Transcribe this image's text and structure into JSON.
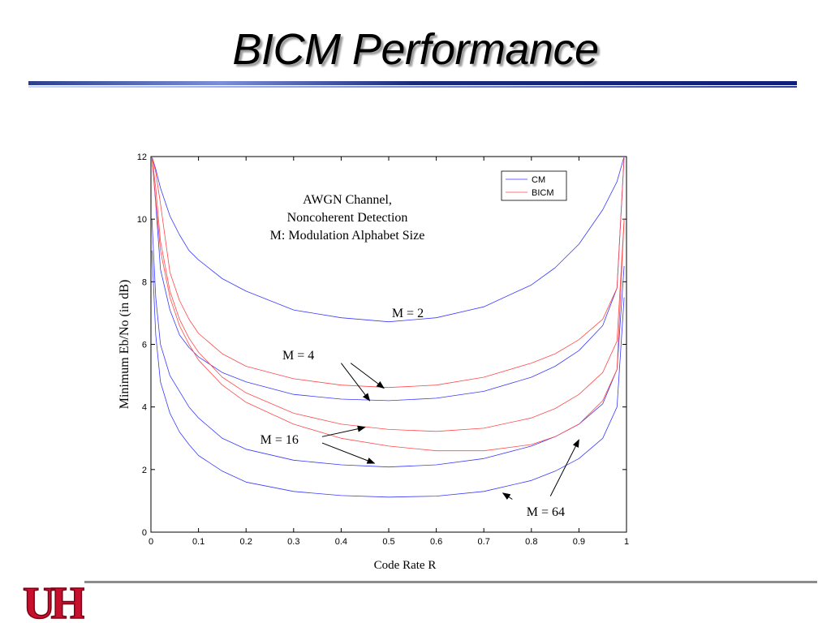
{
  "slide": {
    "title": "BICM Performance"
  },
  "colors": {
    "cm": "#3a3aff",
    "bicm": "#ff4a4a",
    "title_rule_dark": "#1a2b7a",
    "title_rule_light": "#c8d4ff",
    "footer_rule": "#8c8c8c",
    "logo_red": "#c8102e"
  },
  "logo": {
    "icon": "university-of-houston-uh-logo",
    "text": "UH"
  },
  "chart_data": {
    "type": "line",
    "xlabel": "Code Rate R",
    "ylabel": "Minimum Eb/No (in dB)",
    "xlim": [
      0,
      1
    ],
    "ylim": [
      0,
      12
    ],
    "xticks": [
      "0",
      "0.1",
      "0.2",
      "0.3",
      "0.4",
      "0.5",
      "0.6",
      "0.7",
      "0.8",
      "0.9",
      "1"
    ],
    "yticks": [
      "0",
      "2",
      "4",
      "6",
      "8",
      "10",
      "12"
    ],
    "grid": false,
    "legend": {
      "position": "top-right",
      "entries": [
        "CM",
        "BICM"
      ]
    },
    "annotation_lines": [
      "AWGN Channel,",
      "Noncoherent Detection",
      "M: Modulation Alphabet Size"
    ],
    "curve_labels": [
      {
        "text": "M = 2",
        "x": 0.54,
        "y": 7.0
      },
      {
        "text": "M = 4",
        "x": 0.31,
        "y": 5.65
      },
      {
        "text": "M = 16",
        "x": 0.27,
        "y": 2.95
      },
      {
        "text": "M = 64",
        "x": 0.83,
        "y": 0.65
      }
    ],
    "arrows": [
      {
        "from": [
          0.42,
          5.4
        ],
        "to": [
          0.49,
          4.6
        ]
      },
      {
        "from": [
          0.4,
          5.4
        ],
        "to": [
          0.46,
          4.2
        ]
      },
      {
        "from": [
          0.36,
          3.05
        ],
        "to": [
          0.45,
          3.35
        ]
      },
      {
        "from": [
          0.36,
          2.85
        ],
        "to": [
          0.47,
          2.2
        ]
      },
      {
        "from": [
          0.84,
          1.15
        ],
        "to": [
          0.9,
          2.95
        ]
      },
      {
        "from": [
          0.76,
          1.05
        ],
        "to": [
          0.74,
          1.25
        ]
      }
    ],
    "series": [
      {
        "group": "CM",
        "modulation": "M = 2",
        "x": [
          0.002,
          0.01,
          0.02,
          0.04,
          0.06,
          0.08,
          0.1,
          0.15,
          0.2,
          0.3,
          0.4,
          0.5,
          0.6,
          0.7,
          0.8,
          0.85,
          0.9,
          0.95,
          0.98,
          0.995
        ],
        "y": [
          12,
          11.6,
          11,
          10.1,
          9.5,
          9.0,
          8.7,
          8.1,
          7.7,
          7.1,
          6.85,
          6.72,
          6.85,
          7.2,
          7.9,
          8.45,
          9.2,
          10.3,
          11.2,
          12
        ]
      },
      {
        "group": "CM",
        "modulation": "M = 4",
        "x": [
          0.002,
          0.01,
          0.02,
          0.04,
          0.06,
          0.08,
          0.1,
          0.15,
          0.2,
          0.3,
          0.4,
          0.5,
          0.6,
          0.7,
          0.8,
          0.85,
          0.9,
          0.95,
          0.98,
          0.995
        ],
        "y": [
          12,
          10.5,
          8.4,
          7.1,
          6.3,
          5.9,
          5.6,
          5.1,
          4.8,
          4.4,
          4.25,
          4.2,
          4.28,
          4.5,
          4.95,
          5.3,
          5.8,
          6.6,
          7.8,
          12
        ]
      },
      {
        "group": "BICM",
        "modulation": "M = 4",
        "x": [
          0.002,
          0.01,
          0.02,
          0.04,
          0.06,
          0.08,
          0.1,
          0.15,
          0.2,
          0.3,
          0.4,
          0.5,
          0.6,
          0.7,
          0.8,
          0.85,
          0.9,
          0.95,
          0.98,
          0.995
        ],
        "y": [
          12,
          11.5,
          10.5,
          8.3,
          7.4,
          6.8,
          6.35,
          5.7,
          5.3,
          4.9,
          4.7,
          4.62,
          4.7,
          4.95,
          5.4,
          5.7,
          6.15,
          6.8,
          7.8,
          12
        ]
      },
      {
        "group": "CM",
        "modulation": "M = 16",
        "x": [
          0.002,
          0.01,
          0.02,
          0.04,
          0.06,
          0.08,
          0.1,
          0.15,
          0.2,
          0.3,
          0.4,
          0.5,
          0.6,
          0.7,
          0.8,
          0.85,
          0.9,
          0.95,
          0.98,
          0.995
        ],
        "y": [
          10,
          7.5,
          6.0,
          5.0,
          4.5,
          4.0,
          3.65,
          3.0,
          2.65,
          2.3,
          2.15,
          2.08,
          2.15,
          2.35,
          2.75,
          3.05,
          3.45,
          4.1,
          5.2,
          8.5
        ]
      },
      {
        "group": "BICM",
        "modulation": "M = 16",
        "x": [
          0.002,
          0.01,
          0.02,
          0.04,
          0.06,
          0.08,
          0.1,
          0.15,
          0.2,
          0.3,
          0.4,
          0.5,
          0.6,
          0.7,
          0.8,
          0.85,
          0.9,
          0.95,
          0.98,
          0.995
        ],
        "y": [
          12,
          11,
          9.3,
          7.7,
          6.8,
          6.2,
          5.75,
          4.95,
          4.45,
          3.8,
          3.45,
          3.28,
          3.22,
          3.32,
          3.65,
          3.95,
          4.4,
          5.1,
          6.1,
          10
        ]
      },
      {
        "group": "CM",
        "modulation": "M = 64",
        "x": [
          0.002,
          0.01,
          0.02,
          0.04,
          0.06,
          0.08,
          0.1,
          0.15,
          0.2,
          0.3,
          0.4,
          0.5,
          0.6,
          0.7,
          0.8,
          0.85,
          0.9,
          0.95,
          0.98,
          0.995
        ],
        "y": [
          9,
          6.3,
          4.8,
          3.8,
          3.2,
          2.8,
          2.45,
          1.95,
          1.6,
          1.3,
          1.17,
          1.12,
          1.15,
          1.3,
          1.65,
          1.95,
          2.35,
          3.0,
          4.0,
          7.5
        ]
      },
      {
        "group": "BICM",
        "modulation": "M = 64",
        "x": [
          0.002,
          0.01,
          0.02,
          0.04,
          0.06,
          0.08,
          0.1,
          0.15,
          0.2,
          0.3,
          0.4,
          0.5,
          0.6,
          0.7,
          0.8,
          0.85,
          0.9,
          0.95,
          0.98,
          0.995
        ],
        "y": [
          12,
          10.6,
          9.0,
          7.5,
          6.6,
          6.0,
          5.5,
          4.7,
          4.15,
          3.45,
          3.0,
          2.75,
          2.6,
          2.6,
          2.8,
          3.05,
          3.45,
          4.2,
          5.2,
          10
        ]
      }
    ]
  }
}
